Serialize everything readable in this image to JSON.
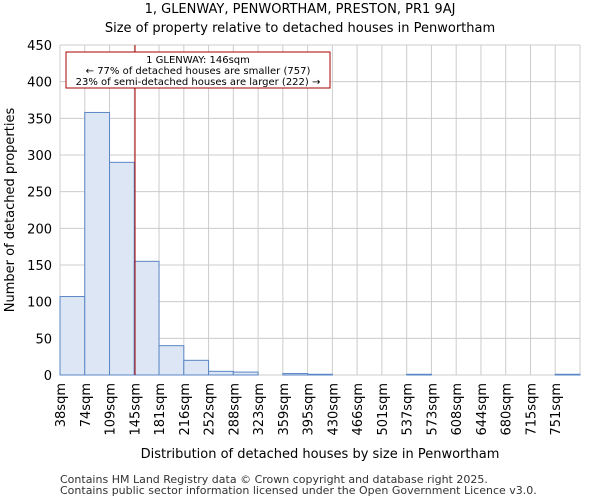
{
  "chart_data": {
    "type": "bar",
    "title": "1, GLENWAY, PENWORTHAM, PRESTON, PR1 9AJ",
    "subtitle": "Size of property relative to detached houses in Penwortham",
    "xlabel": "Distribution of detached houses by size in Penwortham",
    "ylabel": "Number of detached properties",
    "categories": [
      "38sqm",
      "74sqm",
      "109sqm",
      "145sqm",
      "181sqm",
      "216sqm",
      "252sqm",
      "288sqm",
      "323sqm",
      "359sqm",
      "395sqm",
      "430sqm",
      "466sqm",
      "501sqm",
      "537sqm",
      "573sqm",
      "608sqm",
      "644sqm",
      "680sqm",
      "715sqm",
      "751sqm"
    ],
    "values": [
      107,
      358,
      290,
      155,
      40,
      20,
      5,
      4,
      0,
      2,
      1,
      0,
      0,
      0,
      1,
      0,
      0,
      0,
      0,
      0,
      1
    ],
    "ylim": [
      0,
      450
    ],
    "yticks": [
      0,
      50,
      100,
      150,
      200,
      250,
      300,
      350,
      400,
      450
    ],
    "grid": true,
    "bar_color": "#dce6f5",
    "bar_edge_color": "#5b86c4",
    "marker": {
      "value": 146,
      "color": "#aa0000",
      "label_lines": [
        "1 GLENWAY: 146sqm",
        "← 77% of detached houses are smaller (757)",
        "23% of semi-detached houses are larger (222) →"
      ]
    }
  },
  "footer": {
    "line1": "Contains HM Land Registry data © Crown copyright and database right 2025.",
    "line2": "Contains public sector information licensed under the Open Government Licence v3.0."
  }
}
